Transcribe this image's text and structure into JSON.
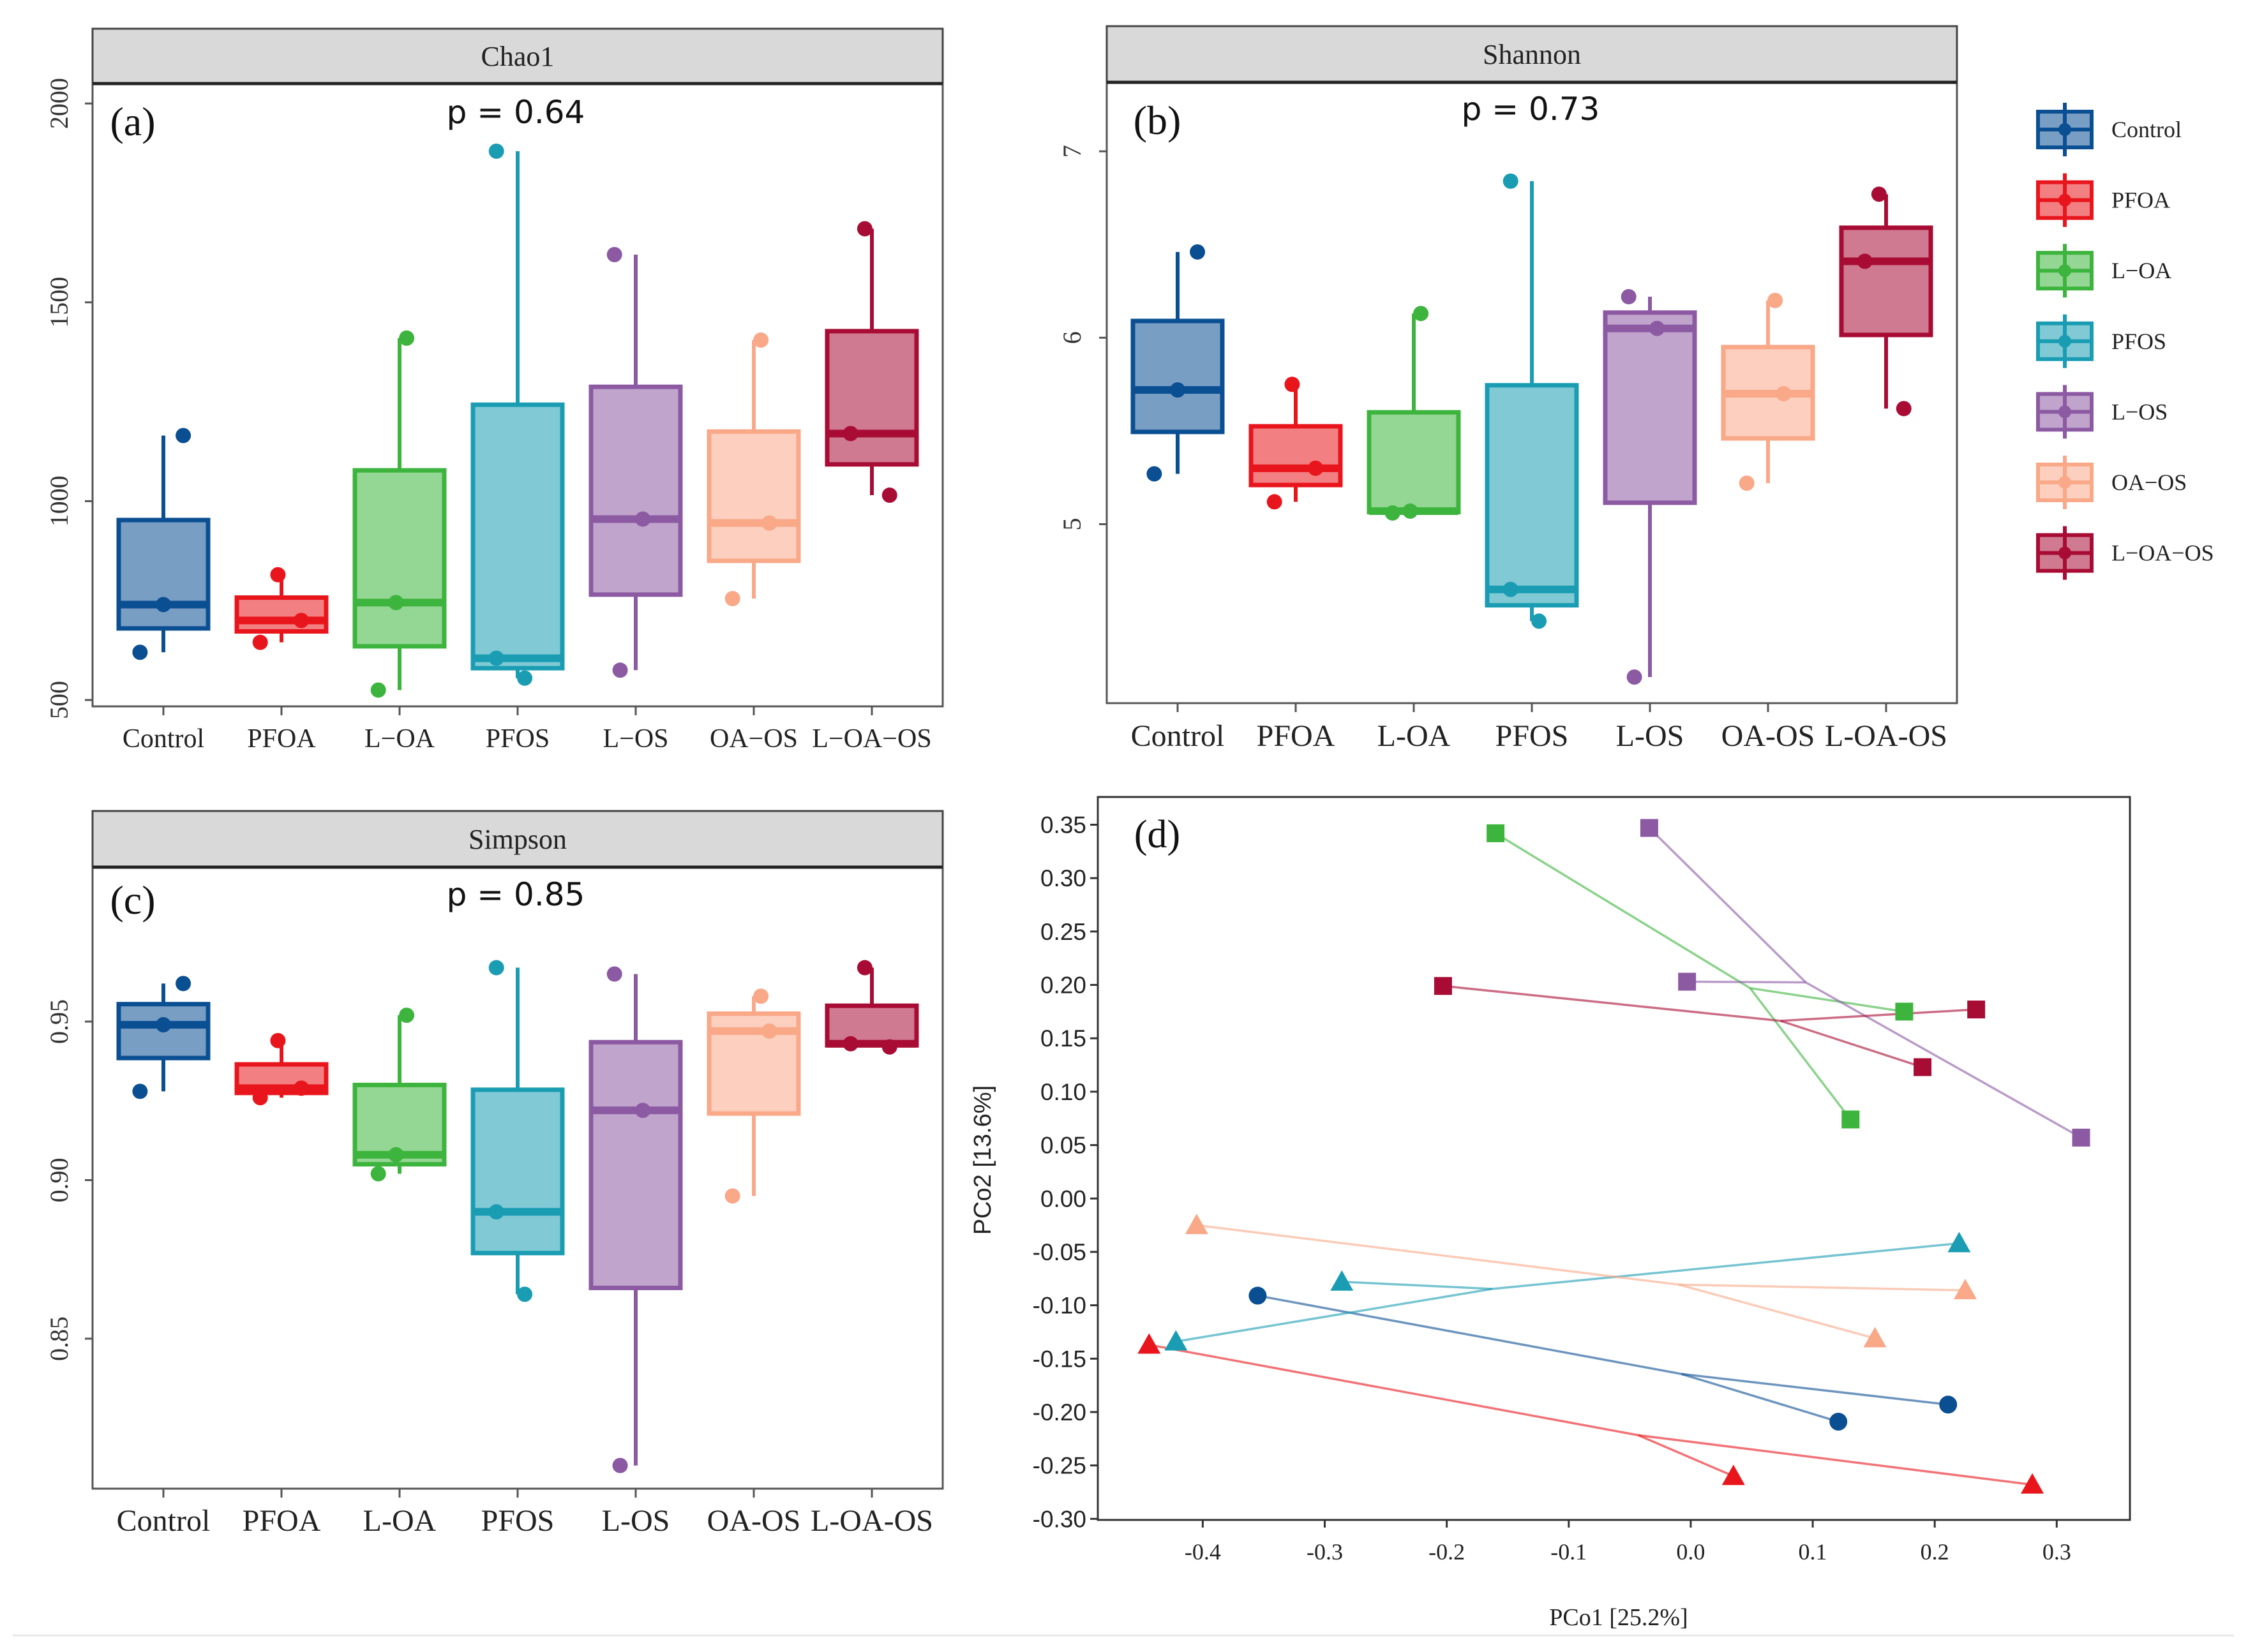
{
  "groups": [
    "Control",
    "PFOA",
    "L−OA",
    "PFOS",
    "L−OS",
    "OA−OS",
    "L−OA−OS"
  ],
  "colors": [
    "#0b4f93",
    "#e8161c",
    "#3db43d",
    "#1a9db3",
    "#8c5aa3",
    "#f9a888",
    "#a80c34"
  ],
  "legend": {
    "items": [
      "Control",
      "PFOA",
      "L−OA",
      "PFOS",
      "L−OS",
      "OA−OS",
      "L−OA−OS"
    ],
    "placement": "right"
  },
  "chart_data": [
    {
      "type": "box",
      "panel_label": "(a)",
      "title": "Chao1",
      "p_text": "p = 0.64",
      "categories": [
        "Control",
        "PFOA",
        "L−OA",
        "PFOS",
        "L−OS",
        "OA−OS",
        "L−OA−OS"
      ],
      "points": [
        [
          620,
          740,
          1165
        ],
        [
          645,
          700,
          815
        ],
        [
          525,
          745,
          1410
        ],
        [
          555,
          605,
          1880
        ],
        [
          575,
          955,
          1620
        ],
        [
          755,
          945,
          1405
        ],
        [
          1015,
          1170,
          1685
        ]
      ],
      "ylim": [
        484,
        2050
      ],
      "yticks": [
        500,
        1000,
        1500,
        2000
      ],
      "tick_decimals": 0
    },
    {
      "type": "box",
      "panel_label": "(b)",
      "title": "Shannon",
      "p_text": "p = 0.73",
      "categories": [
        "Control",
        "PFOA",
        "L-OA",
        "PFOS",
        "L-OS",
        "OA-OS",
        "L-OA-OS"
      ],
      "points": [
        [
          5.27,
          5.72,
          6.46
        ],
        [
          5.12,
          5.3,
          5.75
        ],
        [
          5.06,
          5.07,
          6.13
        ],
        [
          4.48,
          4.65,
          6.84
        ],
        [
          4.18,
          6.05,
          6.22
        ],
        [
          5.22,
          5.7,
          6.2
        ],
        [
          5.62,
          6.41,
          6.77
        ]
      ],
      "ylim": [
        4.04,
        7.37
      ],
      "yticks": [
        5,
        6,
        7
      ],
      "tick_decimals": 0
    },
    {
      "type": "box",
      "panel_label": "(c)",
      "title": "Simpson",
      "p_text": "p = 0.85",
      "categories": [
        "Control",
        "PFOA",
        "L-OA",
        "PFOS",
        "L-OS",
        "OA-OS",
        "L-OA-OS"
      ],
      "points": [
        [
          0.928,
          0.949,
          0.962
        ],
        [
          0.926,
          0.929,
          0.944
        ],
        [
          0.902,
          0.908,
          0.952
        ],
        [
          0.864,
          0.89,
          0.967
        ],
        [
          0.81,
          0.922,
          0.965
        ],
        [
          0.895,
          0.947,
          0.958
        ],
        [
          0.942,
          0.943,
          0.967
        ]
      ],
      "ylim": [
        0.8027,
        0.9987
      ],
      "yticks": [
        0.85,
        0.9,
        0.95
      ],
      "tick_decimals": 2
    },
    {
      "type": "scatter",
      "panel_label": "(d)",
      "xlabel": "PCo1 [25.2%]",
      "ylabel": "PCo2 [13.6%]",
      "xlim": [
        -0.486,
        0.36
      ],
      "ylim": [
        -0.301,
        0.376
      ],
      "xticks": [
        -0.4,
        -0.3,
        -0.2,
        -0.1,
        0.0,
        0.1,
        0.2,
        0.3
      ],
      "yticks": [
        0.35,
        0.3,
        0.25,
        0.2,
        0.15,
        0.1,
        0.05,
        0.0,
        -0.05,
        -0.1,
        -0.15,
        -0.2,
        -0.25,
        -0.3
      ],
      "series": [
        {
          "name": "Control",
          "marker": "circle",
          "points": [
            [
              -0.355,
              -0.091
            ],
            [
              0.121,
              -0.209
            ],
            [
              0.211,
              -0.193
            ]
          ]
        },
        {
          "name": "PFOA",
          "marker": "triangle",
          "points": [
            [
              -0.444,
              -0.137
            ],
            [
              0.035,
              -0.26
            ],
            [
              0.28,
              -0.268
            ]
          ]
        },
        {
          "name": "L−OA",
          "marker": "square",
          "points": [
            [
              -0.16,
              0.342
            ],
            [
              0.175,
              0.175
            ],
            [
              0.131,
              0.074
            ]
          ]
        },
        {
          "name": "PFOS",
          "marker": "triangle",
          "points": [
            [
              -0.422,
              -0.134
            ],
            [
              -0.286,
              -0.078
            ],
            [
              0.22,
              -0.042
            ]
          ]
        },
        {
          "name": "L−OS",
          "marker": "square",
          "points": [
            [
              -0.034,
              0.347
            ],
            [
              -0.003,
              0.203
            ],
            [
              0.32,
              0.057
            ]
          ]
        },
        {
          "name": "OA−OS",
          "marker": "triangle",
          "points": [
            [
              -0.405,
              -0.025
            ],
            [
              0.151,
              -0.131
            ],
            [
              0.225,
              -0.086
            ]
          ]
        },
        {
          "name": "L−OA−OS",
          "marker": "square",
          "points": [
            [
              -0.203,
              0.199
            ],
            [
              0.19,
              0.123
            ],
            [
              0.234,
              0.177
            ]
          ]
        }
      ]
    }
  ]
}
